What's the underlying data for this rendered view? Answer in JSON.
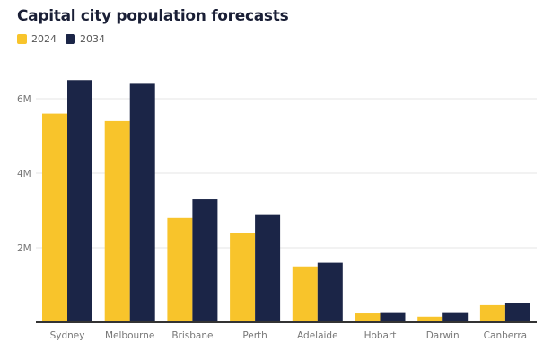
{
  "chart_data": {
    "type": "bar",
    "title": "Capital city population forecasts",
    "categories": [
      "Sydney",
      "Melbourne",
      "Brisbane",
      "Perth",
      "Adelaide",
      "Hobart",
      "Darwin",
      "Canberra"
    ],
    "series": [
      {
        "name": "2024",
        "color": "#f8c42b",
        "values": [
          5.6,
          5.4,
          2.8,
          2.4,
          1.5,
          0.24,
          0.15,
          0.46
        ]
      },
      {
        "name": "2034",
        "color": "#1b2547",
        "values": [
          6.5,
          6.4,
          3.3,
          2.9,
          1.6,
          0.25,
          0.25,
          0.53
        ]
      }
    ],
    "unit": "millions",
    "yticks": [
      {
        "value": 2,
        "label": "2M"
      },
      {
        "value": 4,
        "label": "4M"
      },
      {
        "value": 6,
        "label": "6M"
      }
    ],
    "ylim": [
      0,
      7
    ],
    "grid": true,
    "legend": "top-left",
    "xlabel": "",
    "ylabel": ""
  }
}
